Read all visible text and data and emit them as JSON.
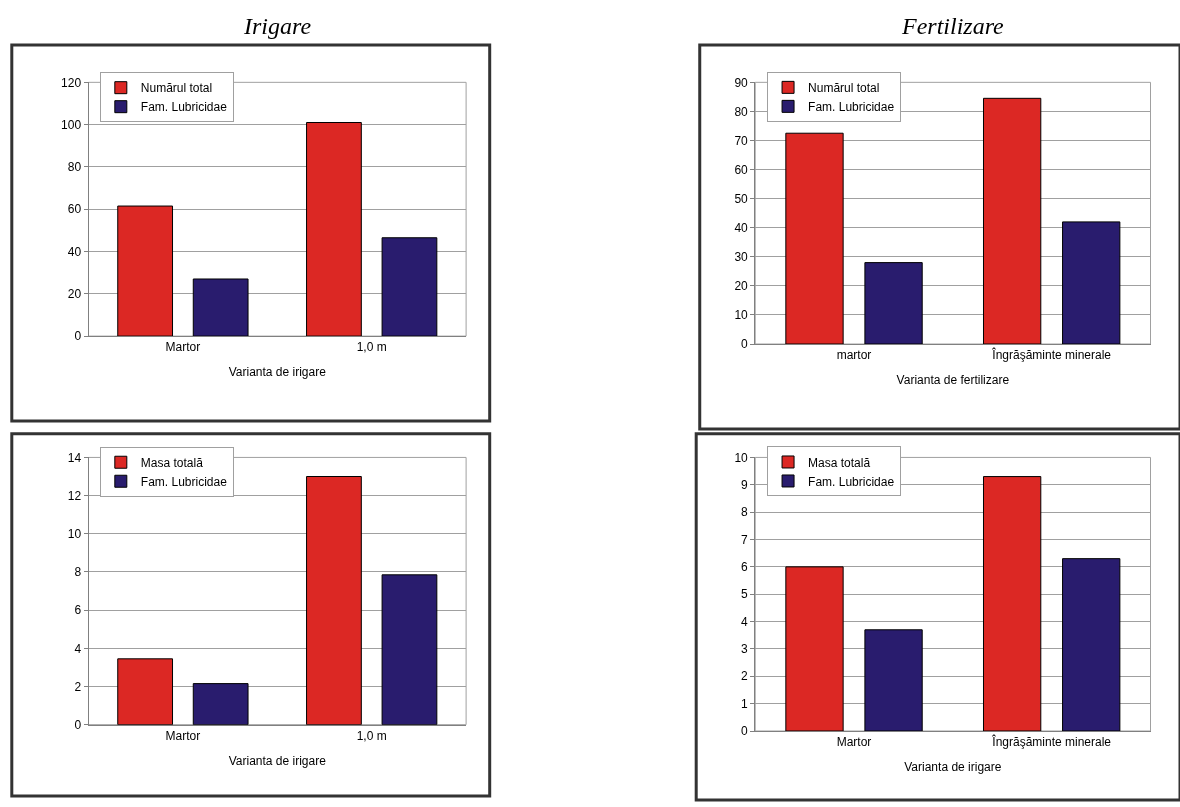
{
  "chart_data": [
    {
      "type": "bar",
      "title": "Irigare",
      "categories": [
        "Martor",
        "1,0 m"
      ],
      "xlabel": "Varianta de irigare",
      "series": [
        {
          "name": "Numărul total",
          "color": "#dc2824",
          "values": [
            61.5,
            101
          ]
        },
        {
          "name": "Fam. Lubricidae",
          "color": "#291c6e",
          "values": [
            27,
            46.5
          ]
        }
      ],
      "ylim": [
        0,
        120
      ],
      "yticks": [
        0,
        20,
        40,
        60,
        80,
        100,
        120
      ],
      "grid": "y",
      "legend": "top left"
    },
    {
      "type": "bar",
      "title": "Fertilizare",
      "categories": [
        "martor",
        "Îngrăşăminte minerale"
      ],
      "xlabel": "Varianta de fertilizare",
      "series": [
        {
          "name": "Numărul total",
          "color": "#dc2824",
          "values": [
            72.5,
            84.5
          ]
        },
        {
          "name": "Fam. Lubricidae",
          "color": "#291c6e",
          "values": [
            28,
            42
          ]
        }
      ],
      "ylim": [
        0,
        90
      ],
      "yticks": [
        0,
        10,
        20,
        30,
        40,
        50,
        60,
        70,
        80,
        90
      ],
      "grid": "y",
      "legend": "top left"
    },
    {
      "type": "bar",
      "categories": [
        "Martor",
        "1,0 m"
      ],
      "xlabel": "Varianta de irigare",
      "series": [
        {
          "name": "Masa totală",
          "color": "#dc2824",
          "values": [
            3.45,
            13
          ]
        },
        {
          "name": "Fam. Lubricidae",
          "color": "#291c6e",
          "values": [
            2.15,
            7.85
          ]
        }
      ],
      "ylim": [
        0,
        14
      ],
      "yticks": [
        0,
        2,
        4,
        6,
        8,
        10,
        12,
        14
      ],
      "grid": "y",
      "legend": "top left"
    },
    {
      "type": "bar",
      "categories": [
        "Martor",
        "Îngrăşăminte minerale"
      ],
      "xlabel": "Varianta de irigare",
      "series": [
        {
          "name": "Masa totală",
          "color": "#dc2824",
          "values": [
            6,
            9.3
          ]
        },
        {
          "name": "Fam. Lubricidae",
          "color": "#291c6e",
          "values": [
            3.7,
            6.3
          ]
        }
      ],
      "ylim": [
        0,
        10
      ],
      "yticks": [
        0,
        1,
        2,
        3,
        4,
        5,
        6,
        7,
        8,
        9,
        10
      ],
      "grid": "y",
      "legend": "top left"
    }
  ]
}
